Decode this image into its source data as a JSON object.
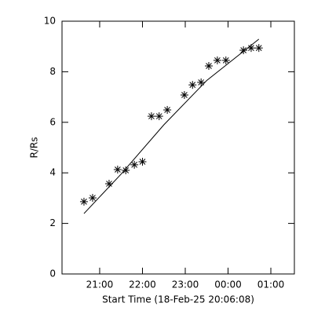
{
  "chart_data": {
    "type": "scatter",
    "xlabel": "Start Time (18-Feb-25 20:06:08)",
    "ylabel": "R/Rs",
    "xlim": [
      0.12,
      5.55
    ],
    "ylim": [
      0,
      10
    ],
    "xticks": [
      {
        "value": 1,
        "label": "21:00"
      },
      {
        "value": 2,
        "label": "22:00"
      },
      {
        "value": 3,
        "label": "23:00"
      },
      {
        "value": 4,
        "label": "00:00"
      },
      {
        "value": 5,
        "label": "01:00"
      }
    ],
    "yticks": [
      0,
      2,
      4,
      6,
      8,
      10
    ],
    "color": "#000000",
    "series": [
      {
        "x": [
          0.633,
          0.835,
          1.22,
          1.42,
          1.61,
          1.81,
          2.0,
          2.21,
          2.39,
          2.58,
          2.98,
          3.17,
          3.37,
          3.55,
          3.75,
          3.95,
          4.36,
          4.54,
          4.72
        ],
        "values": [
          2.86,
          3.01,
          3.57,
          4.13,
          4.1,
          4.32,
          4.44,
          6.24,
          6.24,
          6.49,
          7.08,
          7.48,
          7.58,
          8.23,
          8.45,
          8.45,
          8.85,
          8.94,
          8.94
        ]
      },
      {
        "type": "line",
        "x": [
          0.633,
          1.5,
          2.5,
          3.5,
          4.72
        ],
        "values": [
          2.39,
          3.95,
          5.9,
          7.65,
          9.29
        ]
      }
    ]
  }
}
